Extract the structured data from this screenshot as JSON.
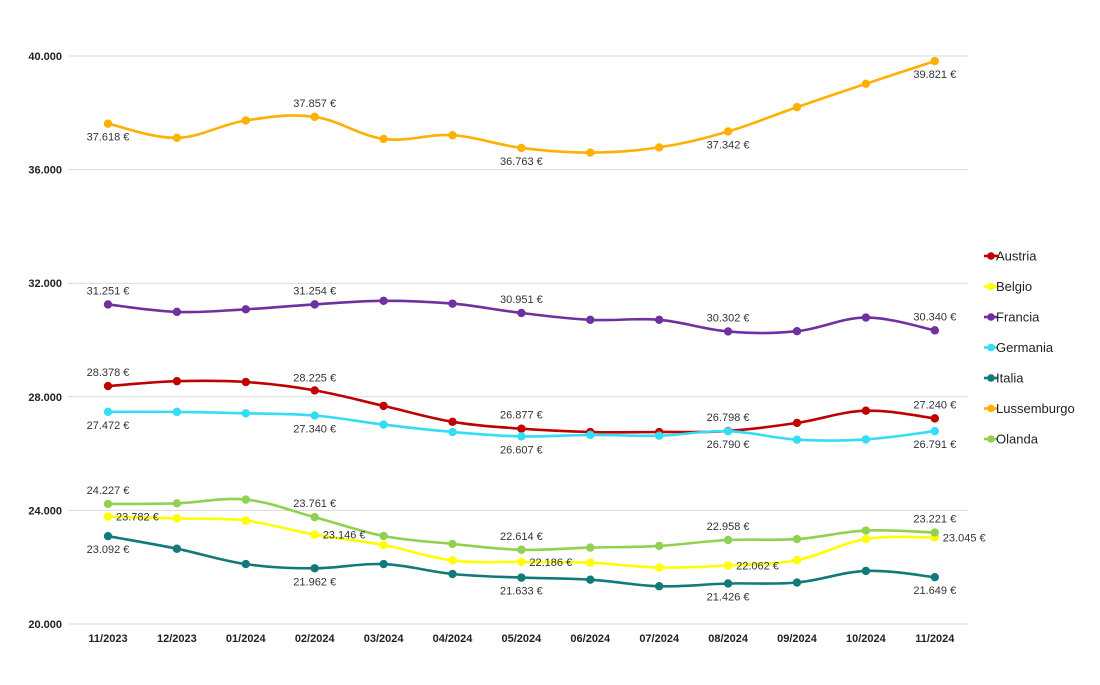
{
  "chart_data": {
    "type": "line",
    "title": "",
    "xlabel": "",
    "ylabel": "",
    "categories": [
      "11/2023",
      "12/2023",
      "01/2024",
      "02/2024",
      "03/2024",
      "04/2024",
      "05/2024",
      "06/2024",
      "07/2024",
      "08/2024",
      "09/2024",
      "10/2024",
      "11/2024"
    ],
    "ylim": [
      20000,
      40000
    ],
    "yticks": [
      20000,
      24000,
      28000,
      32000,
      36000,
      40000
    ],
    "ytick_labels": [
      "20.000",
      "24.000",
      "28.000",
      "32.000",
      "36.000",
      "40.000"
    ],
    "grid": true,
    "legend_position": "right",
    "series": [
      {
        "name": "Austria",
        "color": "#c00000",
        "values": [
          28378,
          28550,
          28520,
          28225,
          27680,
          27120,
          26877,
          26760,
          26760,
          26798,
          27080,
          27510,
          27240
        ],
        "labels": {
          "0": "28.378 €",
          "3": "28.225 €",
          "6": "26.877 €",
          "9": "26.798 €",
          "12": "27.240 €"
        }
      },
      {
        "name": "Belgio",
        "color": "#ffff00",
        "values": [
          23782,
          23720,
          23640,
          23146,
          22780,
          22240,
          22186,
          22160,
          21990,
          22062,
          22250,
          22990,
          23045
        ],
        "labels": {
          "0": "23.782 €",
          "3": "23.146 €",
          "6": "22.186 €",
          "9": "22.062 €",
          "12": "23.045 €"
        }
      },
      {
        "name": "Francia",
        "color": "#7030a0",
        "values": [
          31251,
          30990,
          31080,
          31254,
          31380,
          31280,
          30951,
          30710,
          30710,
          30302,
          30310,
          30790,
          30340
        ],
        "labels": {
          "0": "31.251 €",
          "3": "31.254 €",
          "6": "30.951 €",
          "9": "30.302 €",
          "12": "30.340 €"
        }
      },
      {
        "name": "Germania",
        "color": "#33ddf5",
        "values": [
          27472,
          27470,
          27420,
          27340,
          27020,
          26760,
          26607,
          26660,
          26630,
          26790,
          26490,
          26500,
          26791
        ],
        "labels": {
          "0": "27.472 €",
          "3": "27.340 €",
          "6": "26.607 €",
          "9": "26.790 €",
          "12": "26.791 €"
        }
      },
      {
        "name": "Italia",
        "color": "#127a7a",
        "values": [
          23092,
          22650,
          22110,
          21962,
          22110,
          21760,
          21633,
          21560,
          21330,
          21426,
          21460,
          21870,
          21649
        ],
        "labels": {
          "0": "23.092 €",
          "3": "21.962 €",
          "6": "21.633 €",
          "9": "21.426 €",
          "12": "21.649 €"
        }
      },
      {
        "name": "Lussemburgo",
        "color": "#ffb000",
        "values": [
          37618,
          37120,
          37730,
          37857,
          37080,
          37210,
          36763,
          36600,
          36780,
          37342,
          38200,
          39020,
          39821
        ],
        "labels": {
          "0": "37.618 €",
          "3": "37.857 €",
          "6": "36.763 €",
          "9": "37.342 €",
          "12": "39.821 €"
        }
      },
      {
        "name": "Olanda",
        "color": "#92d050",
        "values": [
          24227,
          24250,
          24380,
          23761,
          23100,
          22820,
          22614,
          22690,
          22750,
          22958,
          22990,
          23290,
          23221
        ],
        "labels": {
          "0": "24.227 €",
          "3": "23.761 €",
          "6": "22.614 €",
          "9": "22.958 €",
          "12": "23.221 €"
        }
      }
    ]
  }
}
